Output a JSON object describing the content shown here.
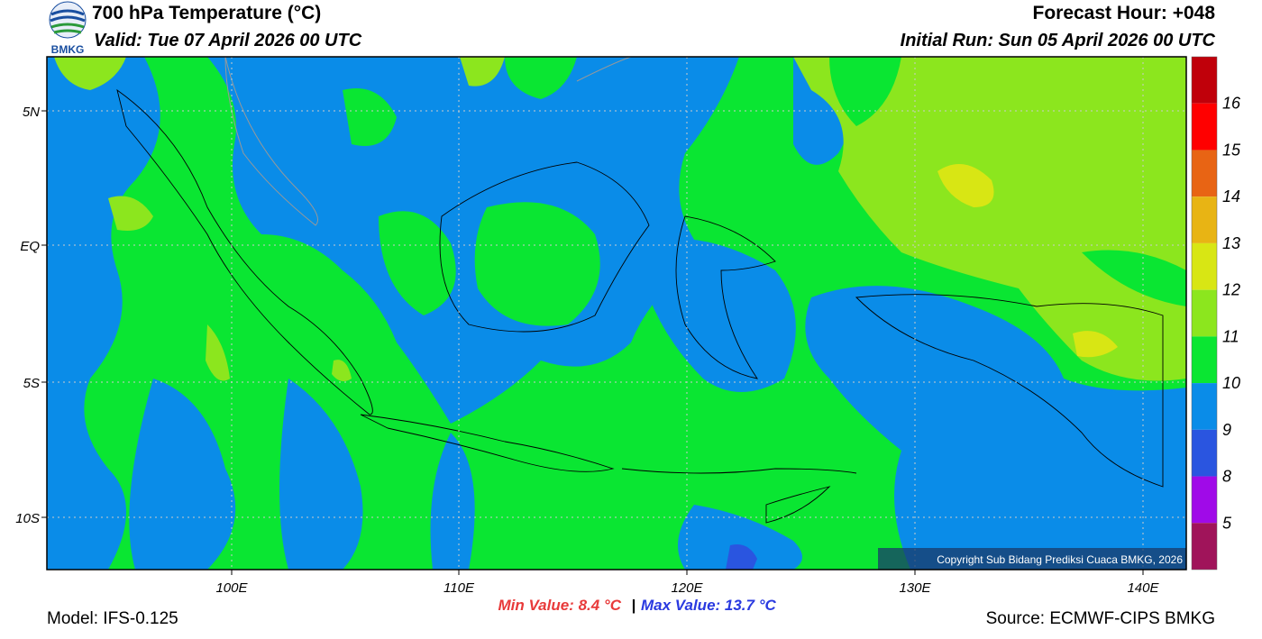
{
  "header": {
    "logo_text": "BMKG",
    "title": "700 hPa Temperature (°C)",
    "valid": "Valid: Tue 07 April 2026 00 UTC",
    "forecast_hour": "Forecast Hour: +048",
    "initial_run": "Initial Run: Sun 05 April 2026 00 UTC"
  },
  "map": {
    "lat_labels": [
      "5N",
      "EQ",
      "5S",
      "10S"
    ],
    "lon_labels": [
      "100E",
      "110E",
      "120E",
      "130E",
      "140E"
    ],
    "copyright": "Copyright Sub Bidang Prediksi Cuaca BMKG, 2026"
  },
  "colorbar": {
    "labels": [
      "16",
      "15",
      "14",
      "13",
      "12",
      "11",
      "10",
      "9",
      "8",
      "5"
    ],
    "colors": [
      "#c0000a",
      "#ff0000",
      "#e86414",
      "#e8b414",
      "#d8e614",
      "#8ce61e",
      "#0ae632",
      "#0a8ce8",
      "#2a55e0",
      "#a00ae8",
      "#a0145a"
    ]
  },
  "footer": {
    "min_value": "Min Value: 8.4 °C",
    "separator": "|",
    "max_value": "Max Value: 13.7 °C",
    "model": "Model: IFS-0.125",
    "source": "Source: ECMWF-CIPS BMKG"
  }
}
